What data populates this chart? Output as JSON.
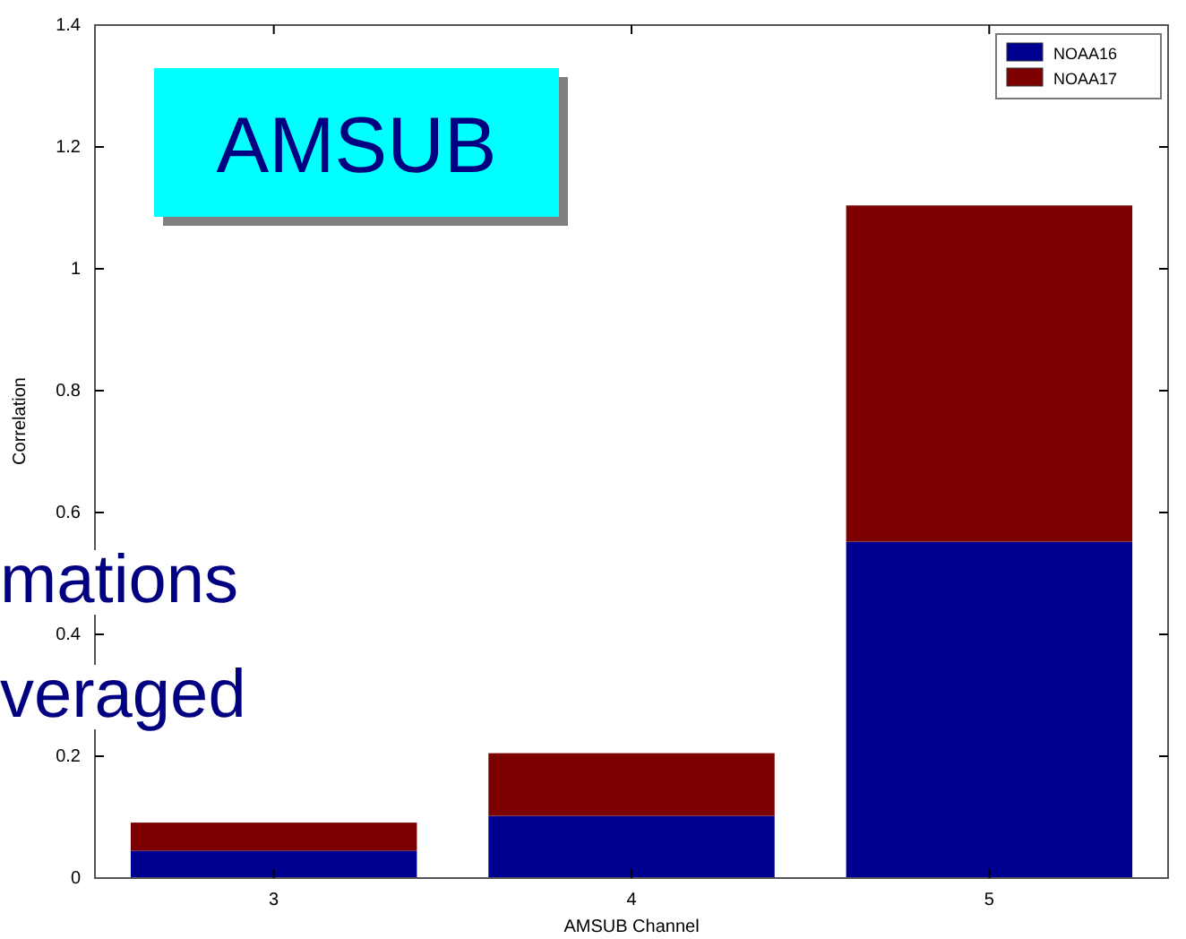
{
  "chart_data": {
    "type": "bar",
    "title": "AMSUB",
    "xlabel": "AMSUB Channel",
    "ylabel": "Correlation",
    "categories": [
      "3",
      "4",
      "5"
    ],
    "stacked": true,
    "series": [
      {
        "name": "NOAA16",
        "color": "#000090",
        "values": [
          0.045,
          0.102,
          0.552
        ]
      },
      {
        "name": "NOAA17",
        "color": "#7d0000",
        "values": [
          0.046,
          0.103,
          0.552
        ]
      }
    ],
    "ylim": [
      0,
      1.4
    ],
    "yticks": [
      0,
      0.2,
      0.4,
      0.6,
      0.8,
      1,
      1.2,
      1.4
    ],
    "grid": false,
    "legend": "top right",
    "annotations": [
      "mations",
      "veraged"
    ]
  }
}
